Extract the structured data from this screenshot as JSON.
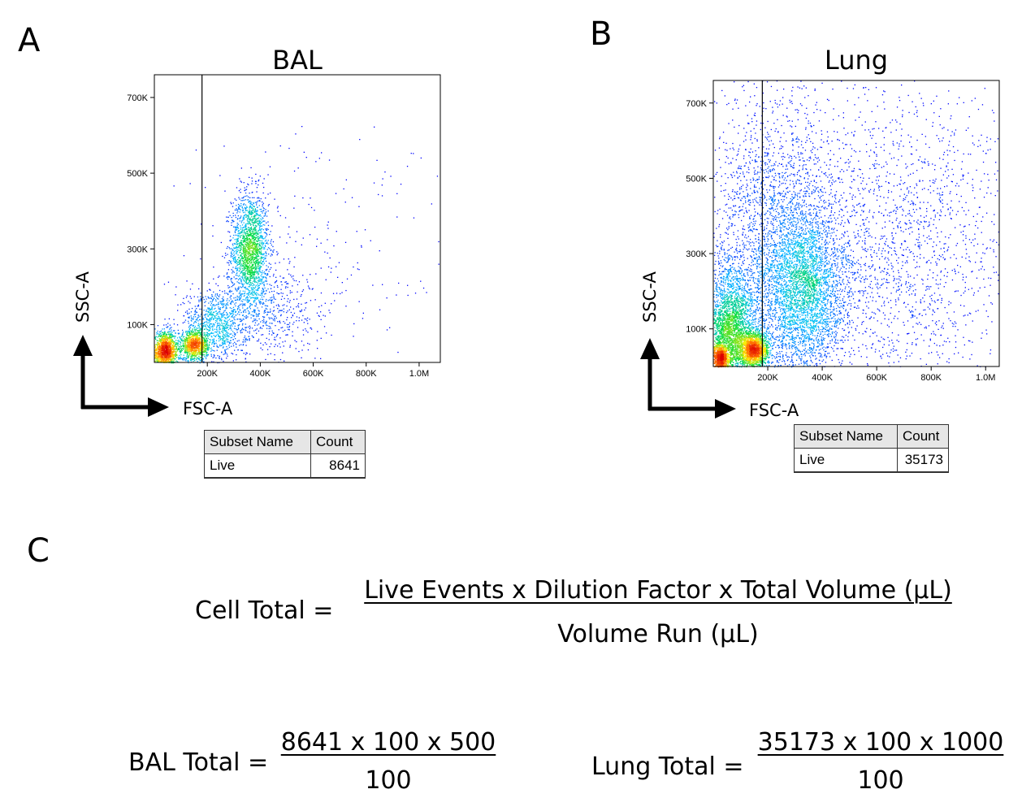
{
  "panels": [
    {
      "letter": "A"
    },
    {
      "letter": "B"
    },
    {
      "letter": "C"
    }
  ],
  "chart_data": [
    {
      "type": "scatter",
      "title": "BAL",
      "xlabel": "FSC-A",
      "ylabel": "SSC-A",
      "xlim": [
        0,
        1080000
      ],
      "ylim": [
        0,
        760000
      ],
      "x_ticks": [
        {
          "value": 200000,
          "label": "200K"
        },
        {
          "value": 400000,
          "label": "400K"
        },
        {
          "value": 600000,
          "label": "600K"
        },
        {
          "value": 800000,
          "label": "800K"
        },
        {
          "value": 1000000,
          "label": "1.0M"
        }
      ],
      "y_ticks": [
        {
          "value": 100000,
          "label": "100K"
        },
        {
          "value": 300000,
          "label": "300K"
        },
        {
          "value": 500000,
          "label": "500K"
        },
        {
          "value": 700000,
          "label": "700K"
        }
      ],
      "gate_x": 180000,
      "populations": [
        {
          "cx": 360000,
          "cy": 300000,
          "sx": 35000,
          "sy": 75000,
          "n": 1800
        },
        {
          "cx": 40000,
          "cy": 30000,
          "sx": 25000,
          "sy": 25000,
          "n": 1400
        },
        {
          "cx": 150000,
          "cy": 45000,
          "sx": 25000,
          "sy": 20000,
          "n": 900
        },
        {
          "cx": 230000,
          "cy": 100000,
          "sx": 60000,
          "sy": 50000,
          "n": 900
        },
        {
          "cx": 420000,
          "cy": 140000,
          "sx": 90000,
          "sy": 60000,
          "n": 500
        },
        {
          "cx": 600000,
          "cy": 260000,
          "sx": 260000,
          "sy": 180000,
          "n": 250
        }
      ],
      "table": {
        "headers": [
          "Subset Name",
          "Count"
        ],
        "rows": [
          [
            "Live",
            "8641"
          ]
        ]
      }
    },
    {
      "type": "scatter",
      "title": "Lung",
      "xlabel": "FSC-A",
      "ylabel": "SSC-A",
      "xlim": [
        0,
        1050000
      ],
      "ylim": [
        0,
        760000
      ],
      "x_ticks": [
        {
          "value": 200000,
          "label": "200K"
        },
        {
          "value": 400000,
          "label": "400K"
        },
        {
          "value": 600000,
          "label": "600K"
        },
        {
          "value": 800000,
          "label": "800K"
        },
        {
          "value": 1000000,
          "label": "1.0M"
        }
      ],
      "y_ticks": [
        {
          "value": 100000,
          "label": "100K"
        },
        {
          "value": 300000,
          "label": "300K"
        },
        {
          "value": 500000,
          "label": "500K"
        },
        {
          "value": 700000,
          "label": "700K"
        }
      ],
      "gate_x": 180000,
      "populations": [
        {
          "cx": 60000,
          "cy": 80000,
          "sx": 50000,
          "sy": 90000,
          "n": 3500
        },
        {
          "cx": 150000,
          "cy": 45000,
          "sx": 25000,
          "sy": 22000,
          "n": 1400
        },
        {
          "cx": 25000,
          "cy": 20000,
          "sx": 12000,
          "sy": 20000,
          "n": 700
        },
        {
          "cx": 330000,
          "cy": 200000,
          "sx": 80000,
          "sy": 110000,
          "n": 3200
        },
        {
          "cx": 200000,
          "cy": 330000,
          "sx": 120000,
          "sy": 190000,
          "n": 2000
        },
        {
          "cx": 600000,
          "cy": 320000,
          "sx": 280000,
          "sy": 220000,
          "n": 2600
        }
      ],
      "table": {
        "headers": [
          "Subset Name",
          "Count"
        ],
        "rows": [
          [
            "Live",
            "35173"
          ]
        ]
      }
    }
  ],
  "formula": {
    "lhs": "Cell Total =",
    "numerator": "Live Events x Dilution Factor x Total Volume (µL)",
    "denominator": "Volume Run (µL)"
  },
  "calc_bal": {
    "lhs": "BAL Total =",
    "numerator": "8641 x 100 x 500",
    "denominator": "100"
  },
  "calc_lung": {
    "lhs": "Lung Total =",
    "numerator": "35173 x 100 x 1000",
    "denominator": "100"
  }
}
